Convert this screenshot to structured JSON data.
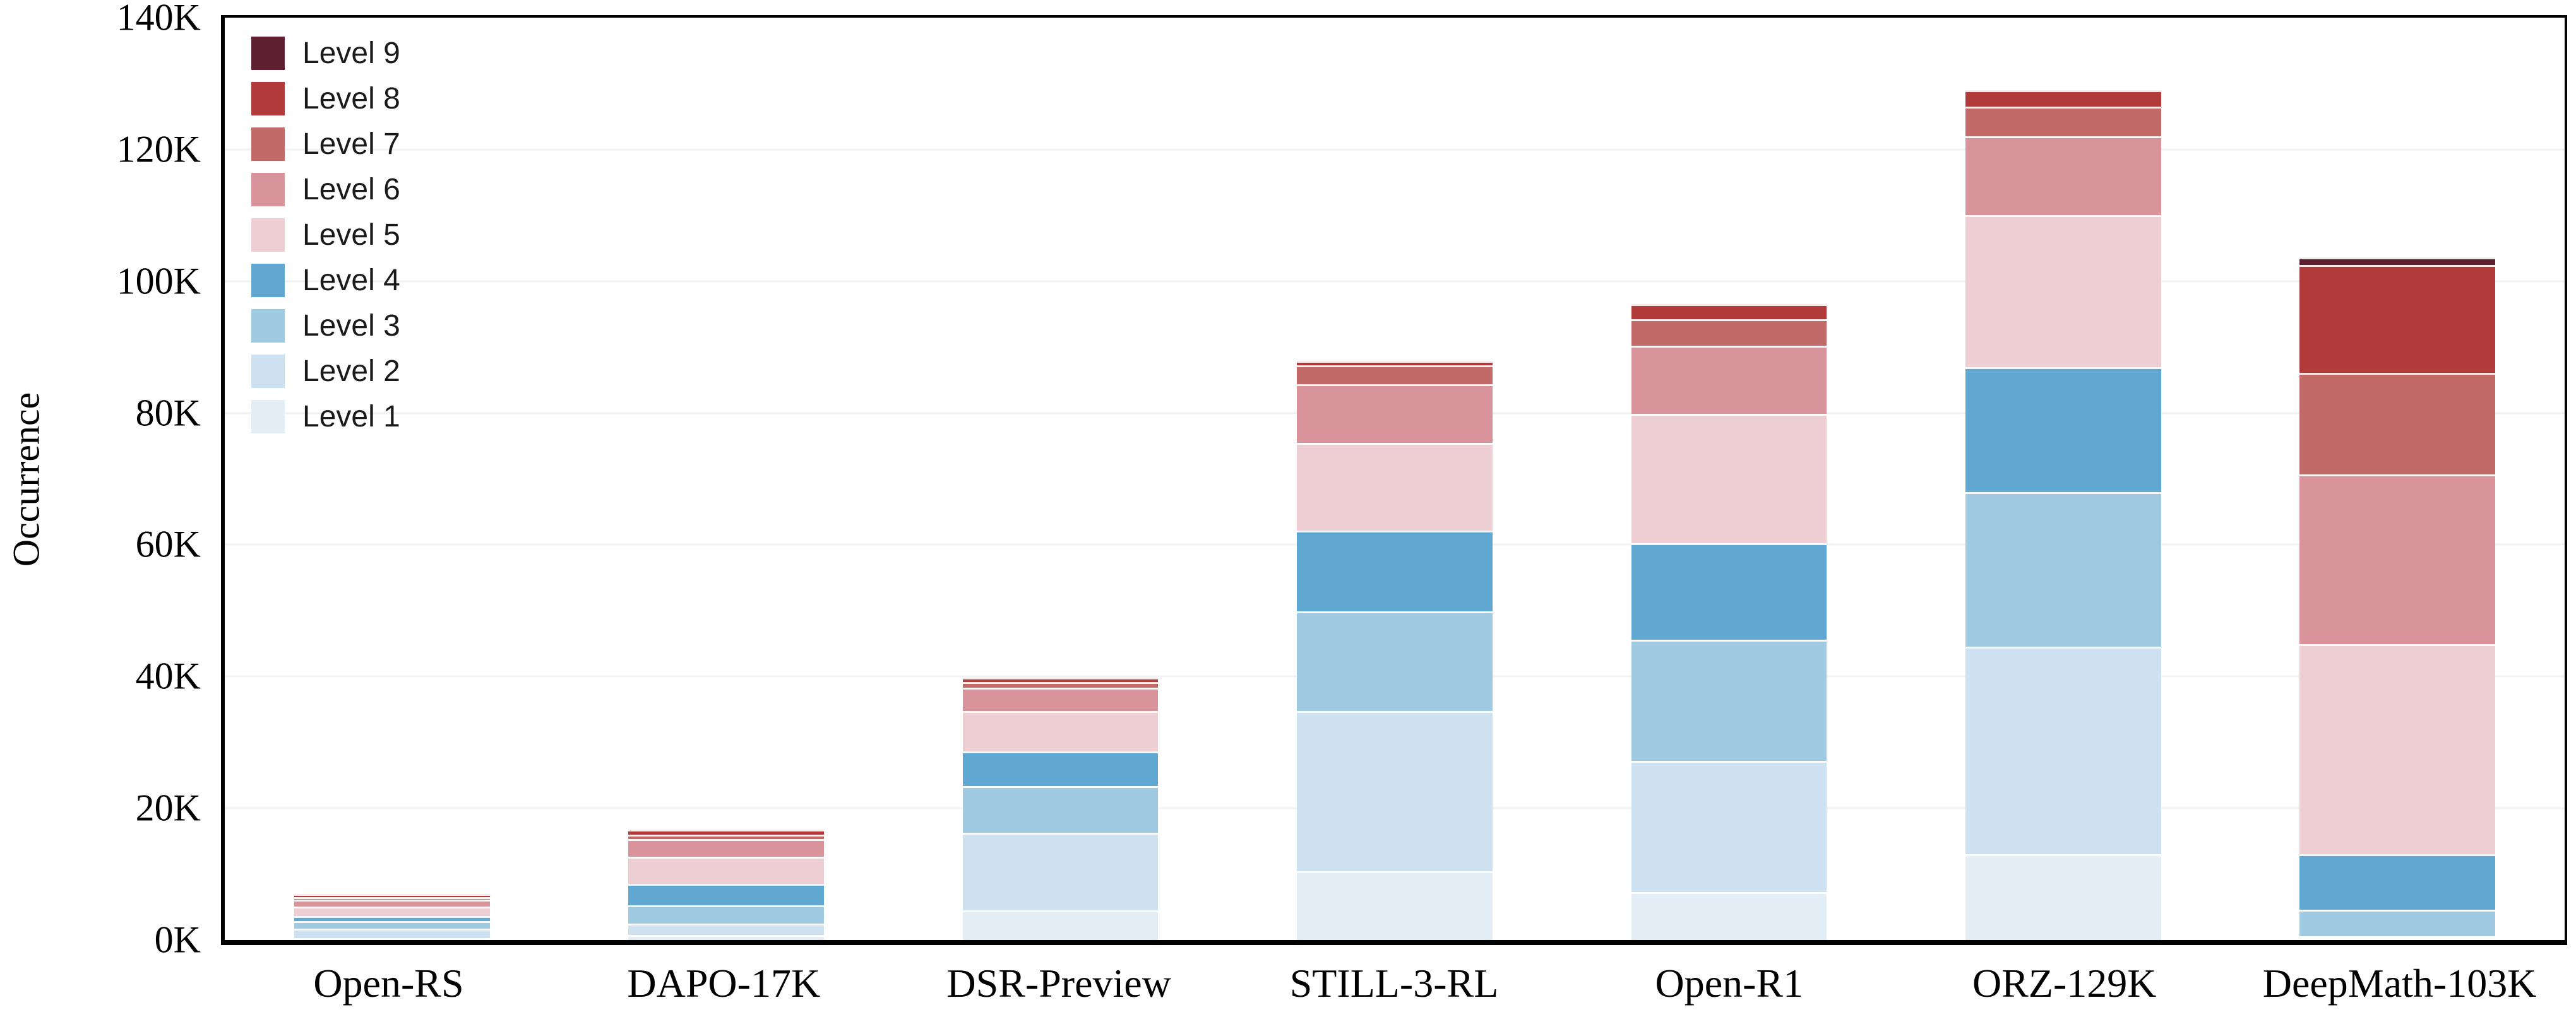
{
  "figure": {
    "background": "#ffffff",
    "spine_color": "#000000",
    "grid_color": "#f2f2f2",
    "segment_separator_color": "#ffffff"
  },
  "chart_data": {
    "type": "bar",
    "stacked": true,
    "orientation": "vertical",
    "title": "",
    "xlabel": "",
    "ylabel": "Occurrence",
    "unit": "thousands",
    "ylim": [
      0,
      140
    ],
    "ytick_step": 20,
    "yticks": [
      "0K",
      "20K",
      "40K",
      "60K",
      "80K",
      "100K",
      "120K",
      "140K"
    ],
    "grid": true,
    "legend_position": "upper-left",
    "legend_order": "top-to-bottom: Level 9 ... Level 1",
    "categories": [
      "Open-RS",
      "DAPO-17K",
      "DSR-Preview",
      "STILL-3-RL",
      "Open-R1",
      "ORZ-129K",
      "DeepMath-103K"
    ],
    "series": [
      {
        "name": "Level 1",
        "color": "#e4eef7",
        "values": [
          0.2,
          0.8,
          4.5,
          10.4,
          7.3,
          13.0,
          0.1
        ]
      },
      {
        "name": "Level 2",
        "color": "#cee1f0",
        "values": [
          1.4,
          1.7,
          11.8,
          24.4,
          19.9,
          31.5,
          0.3
        ]
      },
      {
        "name": "Level 3",
        "color": "#a0c9e2",
        "values": [
          1.2,
          2.8,
          7.1,
          15.1,
          18.4,
          23.5,
          4.0
        ]
      },
      {
        "name": "Level 4",
        "color": "#60a8d2",
        "values": [
          0.8,
          3.2,
          5.2,
          12.3,
          14.6,
          19.0,
          8.4
        ]
      },
      {
        "name": "Level 5",
        "color": "#ecced3",
        "values": [
          1.35,
          4.1,
          6.2,
          13.3,
          19.7,
          23.0,
          31.9
        ]
      },
      {
        "name": "Level 6",
        "color": "#d9939b",
        "values": [
          1.05,
          2.7,
          3.5,
          8.9,
          10.3,
          12.0,
          25.8
        ]
      },
      {
        "name": "Level 7",
        "color": "#c16a67",
        "values": [
          0.45,
          0.7,
          0.85,
          2.8,
          4.0,
          4.5,
          15.4
        ]
      },
      {
        "name": "Level 8",
        "color": "#b13a3a",
        "values": [
          0.45,
          0.75,
          0.7,
          0.75,
          2.3,
          2.5,
          16.4
        ]
      },
      {
        "name": "Level 9",
        "color": "#5e1f30",
        "values": [
          0,
          0,
          0,
          0,
          0,
          0,
          1.1
        ]
      }
    ],
    "bar_totals": [
      6.9,
      16.75,
      39.85,
      87.95,
      96.5,
      129.0,
      103.4
    ]
  }
}
